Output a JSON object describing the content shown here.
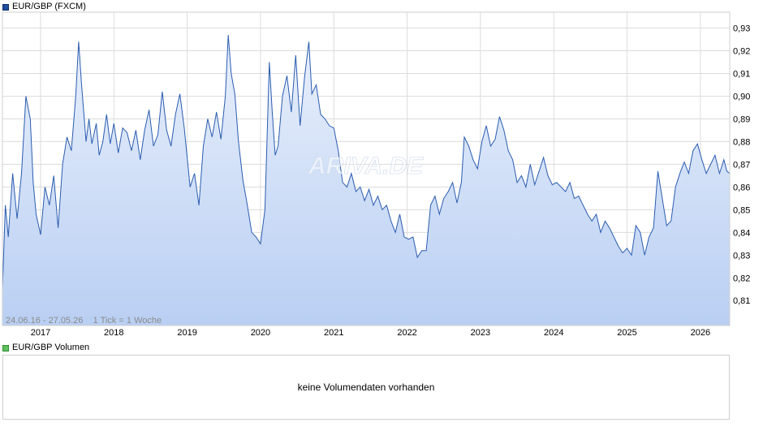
{
  "price_panel": {
    "legend_label": "EUR/GBP (FXCM)",
    "range_info": "24.06.16 - 27.05.26    1 Tick = 1 Woche",
    "watermark": "ARIVA.DE"
  },
  "volume_panel": {
    "legend_label": "EUR/GBP Volumen",
    "empty_message": "keine Volumendaten vorhanden"
  },
  "colors": {
    "line": "#2a5cb0",
    "fill_top": "#e9f0fb",
    "fill_bottom": "#b9cff3",
    "grid": "#dcdcdc"
  },
  "chart_data": {
    "type": "area",
    "series": [
      {
        "name": "EUR/GBP (FXCM)",
        "x": [
          2016.48,
          2016.52,
          2016.56,
          2016.62,
          2016.68,
          2016.74,
          2016.8,
          2016.86,
          2016.9,
          2016.94,
          2017.0,
          2017.06,
          2017.12,
          2017.18,
          2017.24,
          2017.3,
          2017.36,
          2017.42,
          2017.48,
          2017.52,
          2017.56,
          2017.62,
          2017.66,
          2017.7,
          2017.76,
          2017.8,
          2017.85,
          2017.9,
          2017.95,
          2018.0,
          2018.06,
          2018.12,
          2018.18,
          2018.24,
          2018.3,
          2018.36,
          2018.42,
          2018.48,
          2018.54,
          2018.6,
          2018.66,
          2018.72,
          2018.78,
          2018.84,
          2018.9,
          2018.96,
          2019.0,
          2019.04,
          2019.1,
          2019.16,
          2019.22,
          2019.28,
          2019.34,
          2019.4,
          2019.46,
          2019.52,
          2019.56,
          2019.6,
          2019.65,
          2019.7,
          2019.76,
          2019.82,
          2019.88,
          2019.94,
          2020.0,
          2020.06,
          2020.12,
          2020.16,
          2020.2,
          2020.24,
          2020.3,
          2020.36,
          2020.42,
          2020.48,
          2020.54,
          2020.6,
          2020.66,
          2020.7,
          2020.76,
          2020.82,
          2020.88,
          2020.94,
          2021.0,
          2021.06,
          2021.12,
          2021.18,
          2021.24,
          2021.3,
          2021.36,
          2021.42,
          2021.48,
          2021.54,
          2021.6,
          2021.66,
          2021.72,
          2021.78,
          2021.84,
          2021.9,
          2021.96,
          2022.02,
          2022.08,
          2022.14,
          2022.2,
          2022.26,
          2022.32,
          2022.38,
          2022.44,
          2022.5,
          2022.56,
          2022.62,
          2022.68,
          2022.74,
          2022.78,
          2022.84,
          2022.9,
          2022.96,
          2023.02,
          2023.08,
          2023.14,
          2023.2,
          2023.26,
          2023.32,
          2023.38,
          2023.44,
          2023.5,
          2023.56,
          2023.62,
          2023.68,
          2023.74,
          2023.8,
          2023.86,
          2023.92,
          2023.98,
          2024.04,
          2024.1,
          2024.16,
          2024.22,
          2024.28,
          2024.34,
          2024.4,
          2024.46,
          2024.52,
          2024.58,
          2024.64,
          2024.7,
          2024.76,
          2024.82,
          2024.88,
          2024.94,
          2025.0,
          2025.06,
          2025.12,
          2025.18,
          2025.24,
          2025.3,
          2025.36,
          2025.42,
          2025.48,
          2025.54,
          2025.6,
          2025.66,
          2025.72,
          2025.78,
          2025.84,
          2025.9,
          2025.96,
          2026.02,
          2026.08,
          2026.14,
          2026.2,
          2026.26,
          2026.32,
          2026.36,
          2026.4
        ],
        "values": [
          0.815,
          0.852,
          0.838,
          0.866,
          0.846,
          0.866,
          0.9,
          0.89,
          0.862,
          0.848,
          0.839,
          0.86,
          0.852,
          0.865,
          0.842,
          0.87,
          0.882,
          0.876,
          0.9,
          0.924,
          0.905,
          0.88,
          0.89,
          0.879,
          0.888,
          0.874,
          0.88,
          0.892,
          0.879,
          0.888,
          0.875,
          0.886,
          0.884,
          0.876,
          0.885,
          0.872,
          0.885,
          0.894,
          0.878,
          0.883,
          0.902,
          0.885,
          0.878,
          0.892,
          0.901,
          0.886,
          0.873,
          0.86,
          0.866,
          0.852,
          0.878,
          0.89,
          0.882,
          0.893,
          0.881,
          0.9,
          0.927,
          0.91,
          0.901,
          0.88,
          0.863,
          0.852,
          0.84,
          0.838,
          0.835,
          0.85,
          0.915,
          0.893,
          0.874,
          0.878,
          0.9,
          0.909,
          0.893,
          0.918,
          0.887,
          0.908,
          0.924,
          0.901,
          0.905,
          0.892,
          0.89,
          0.887,
          0.886,
          0.876,
          0.862,
          0.86,
          0.866,
          0.858,
          0.86,
          0.854,
          0.859,
          0.852,
          0.856,
          0.85,
          0.852,
          0.845,
          0.84,
          0.848,
          0.838,
          0.837,
          0.838,
          0.829,
          0.832,
          0.832,
          0.852,
          0.856,
          0.848,
          0.855,
          0.858,
          0.862,
          0.853,
          0.862,
          0.882,
          0.878,
          0.872,
          0.868,
          0.88,
          0.887,
          0.878,
          0.881,
          0.891,
          0.885,
          0.876,
          0.872,
          0.862,
          0.865,
          0.86,
          0.87,
          0.861,
          0.867,
          0.873,
          0.865,
          0.861,
          0.862,
          0.86,
          0.858,
          0.862,
          0.855,
          0.856,
          0.852,
          0.848,
          0.845,
          0.848,
          0.84,
          0.845,
          0.842,
          0.838,
          0.834,
          0.831,
          0.833,
          0.83,
          0.843,
          0.84,
          0.83,
          0.838,
          0.842,
          0.867,
          0.855,
          0.843,
          0.845,
          0.86,
          0.866,
          0.871,
          0.866,
          0.876,
          0.879,
          0.872,
          0.866,
          0.87,
          0.874,
          0.866,
          0.872,
          0.867,
          0.866
        ]
      }
    ],
    "x_ticks": [
      2017,
      2018,
      2019,
      2020,
      2021,
      2022,
      2023,
      2024,
      2025,
      2026
    ],
    "y_ticks": [
      0.81,
      0.82,
      0.83,
      0.84,
      0.85,
      0.86,
      0.87,
      0.88,
      0.89,
      0.9,
      0.91,
      0.92,
      0.93
    ],
    "y_tick_labels": [
      "0,81",
      "0,82",
      "0,83",
      "0,84",
      "0,85",
      "0,86",
      "0,87",
      "0,88",
      "0,89",
      "0,90",
      "0,91",
      "0,92",
      "0,93"
    ],
    "xlim": [
      2016.48,
      2026.4
    ],
    "ylim": [
      0.799,
      0.937
    ],
    "grid": true,
    "y_axis_position": "right"
  }
}
